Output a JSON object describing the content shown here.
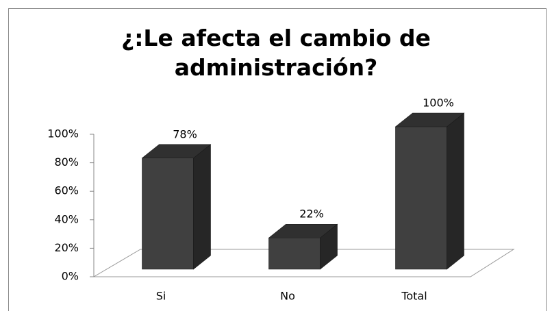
{
  "chart_data": {
    "type": "bar3d",
    "title": "¿:Le afecta el cambio de administración?",
    "categories": [
      "Si",
      "No",
      "Total"
    ],
    "values": [
      78,
      22,
      100
    ],
    "value_labels": [
      "78%",
      "22%",
      "100%"
    ],
    "color": "#404040",
    "ylim": [
      0,
      100
    ],
    "yticks": [
      {
        "value": 0,
        "label": "0%"
      },
      {
        "value": 20,
        "label": "20%"
      },
      {
        "value": 40,
        "label": "40%"
      },
      {
        "value": 60,
        "label": "60%"
      },
      {
        "value": 80,
        "label": "80%"
      },
      {
        "value": 100,
        "label": "100%"
      }
    ]
  }
}
